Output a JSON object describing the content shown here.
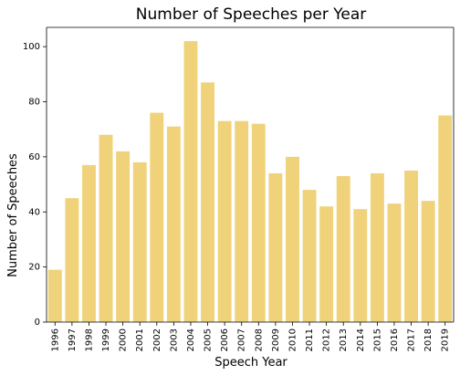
{
  "chart_data": {
    "type": "bar",
    "title": "Number of Speeches per Year",
    "xlabel": "Speech Year",
    "ylabel": "Number of Speeches",
    "ylim": [
      0,
      107
    ],
    "yticks": [
      0,
      20,
      40,
      60,
      80,
      100
    ],
    "categories": [
      "1996",
      "1997",
      "1998",
      "1999",
      "2000",
      "2001",
      "2002",
      "2003",
      "2004",
      "2005",
      "2006",
      "2007",
      "2008",
      "2009",
      "2010",
      "2011",
      "2012",
      "2013",
      "2014",
      "2015",
      "2016",
      "2017",
      "2018",
      "2019"
    ],
    "values": [
      19,
      45,
      57,
      68,
      62,
      58,
      76,
      71,
      102,
      87,
      73,
      73,
      72,
      54,
      60,
      48,
      42,
      53,
      41,
      54,
      43,
      55,
      44,
      75
    ],
    "bar_color": "#efd279",
    "grid": false,
    "legend": "none"
  }
}
